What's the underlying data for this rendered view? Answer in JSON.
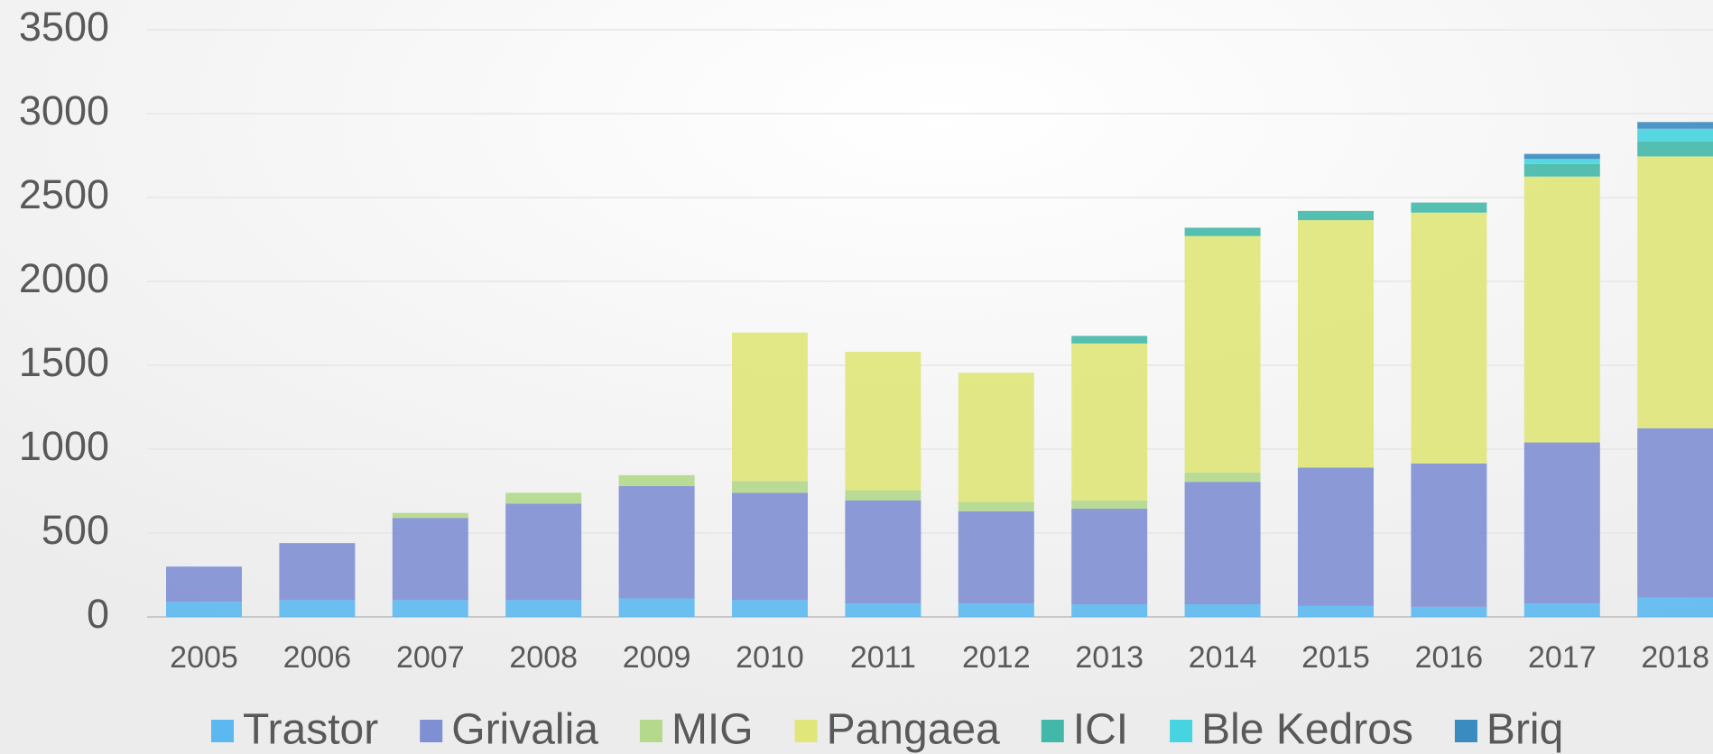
{
  "chart_data": {
    "type": "stacked_bar",
    "categories": [
      "2005",
      "2006",
      "2007",
      "2008",
      "2009",
      "2010",
      "2011",
      "2012",
      "2013",
      "2014",
      "2015",
      "2016",
      "2017",
      "2018"
    ],
    "series": [
      {
        "name": "Trastor",
        "color": "#5bb8f0",
        "values": [
          90,
          100,
          100,
          100,
          110,
          100,
          80,
          80,
          75,
          75,
          65,
          60,
          80,
          115
        ]
      },
      {
        "name": "Grivalia",
        "color": "#7f8fd4",
        "values": [
          210,
          340,
          490,
          575,
          670,
          640,
          615,
          550,
          570,
          730,
          825,
          855,
          960,
          1010
        ]
      },
      {
        "name": "MIG",
        "color": "#b4d88c",
        "values": [
          0,
          0,
          30,
          65,
          65,
          70,
          60,
          55,
          50,
          55,
          0,
          0,
          0,
          0
        ]
      },
      {
        "name": "Pangaea",
        "color": "#e0e67a",
        "values": [
          0,
          0,
          0,
          0,
          0,
          885,
          825,
          770,
          935,
          1410,
          1475,
          1495,
          1585,
          1620
        ]
      },
      {
        "name": "ICI",
        "color": "#43b8a8",
        "values": [
          0,
          0,
          0,
          0,
          0,
          0,
          0,
          0,
          45,
          50,
          55,
          60,
          75,
          90
        ]
      },
      {
        "name": "Ble Kedros",
        "color": "#45d4e0",
        "values": [
          0,
          0,
          0,
          0,
          0,
          0,
          0,
          0,
          0,
          0,
          0,
          0,
          30,
          75
        ]
      },
      {
        "name": "Briq",
        "color": "#3a8cc0",
        "values": [
          0,
          0,
          0,
          0,
          0,
          0,
          0,
          0,
          0,
          0,
          0,
          0,
          30,
          40
        ]
      }
    ],
    "ylim": [
      0,
      3500
    ],
    "yticks": [
      0,
      500,
      1000,
      1500,
      2000,
      2500,
      3000,
      3500
    ],
    "grid": true,
    "legend": "bottom"
  }
}
